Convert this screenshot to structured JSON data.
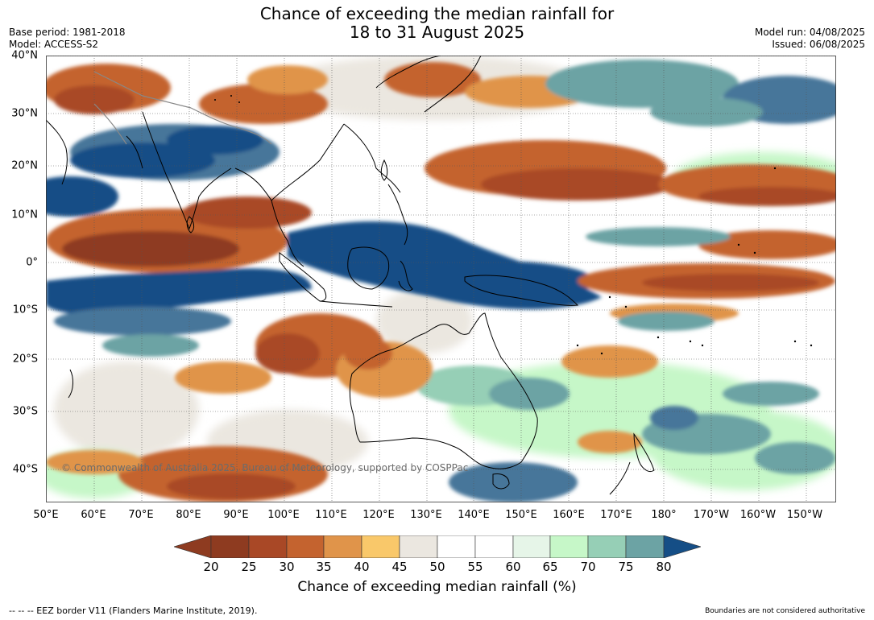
{
  "header": {
    "title_line1": "Chance of exceeding the median rainfall for",
    "title_line2": "18 to 31 August 2025",
    "base_period": "Base period: 1981-2018",
    "model": "Model: ACCESS-S2",
    "model_run": "Model run: 04/08/2025",
    "issued": "Issued: 06/08/2025"
  },
  "map": {
    "lat_labels": [
      "40°N",
      "30°N",
      "20°N",
      "10°N",
      "0°",
      "10°S",
      "20°S",
      "30°S",
      "40°S"
    ],
    "lon_labels": [
      "50°E",
      "60°E",
      "70°E",
      "80°E",
      "90°E",
      "100°E",
      "110°E",
      "120°E",
      "130°E",
      "140°E",
      "150°E",
      "160°E",
      "170°E",
      "180°",
      "170°W",
      "160°W",
      "150°W"
    ],
    "copyright": "© Commonwealth of Australia 2025, Bureau of Meteorology, supported by COSPPac",
    "colors": {
      "c20": "#8e3b20",
      "c25": "#a94826",
      "c30": "#c4632f",
      "c35": "#e0944a",
      "c40": "#f9c86a",
      "c45": "#ebe7e0",
      "c50": "#ffffff",
      "c55": "#ffffff",
      "c60": "#e6f5e8",
      "c65": "#c6f7c8",
      "c70": "#96cfb6",
      "c75": "#6ca3a4",
      "c80": "#46769a",
      "c85": "#154e86"
    }
  },
  "colorbar": {
    "ticks": [
      "20",
      "25",
      "30",
      "35",
      "40",
      "45",
      "50",
      "55",
      "60",
      "65",
      "70",
      "75",
      "80"
    ],
    "label": "Chance of exceeding median rainfall (%)"
  },
  "footer": {
    "eez": "--  --  -- EEZ border V11 (Flanders Marine Institute, 2019).",
    "disclaimer": "Boundaries are not considered authoritative"
  }
}
